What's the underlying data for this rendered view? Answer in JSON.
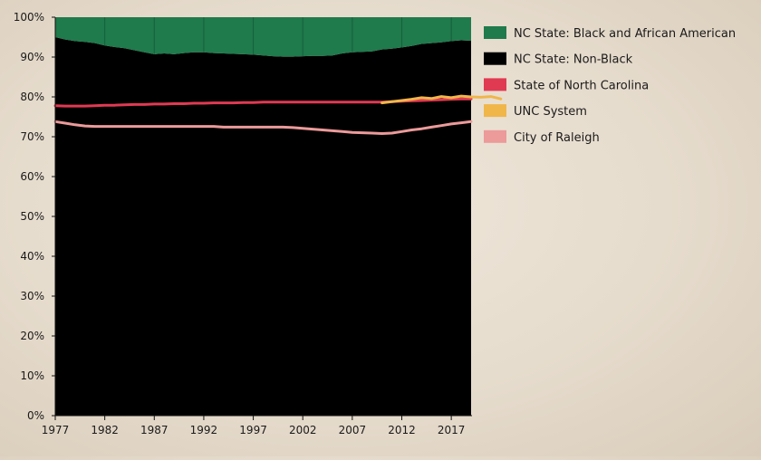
{
  "chart_data": {
    "type": "area",
    "years": [
      1977,
      1978,
      1979,
      1980,
      1981,
      1982,
      1983,
      1984,
      1985,
      1986,
      1987,
      1988,
      1989,
      1990,
      1991,
      1992,
      1993,
      1994,
      1995,
      1996,
      1997,
      1998,
      1999,
      2000,
      2001,
      2002,
      2003,
      2004,
      2005,
      2006,
      2007,
      2008,
      2009,
      2010,
      2011,
      2012,
      2013,
      2014,
      2015,
      2016,
      2017,
      2018,
      2019
    ],
    "x_ticks": [
      "1977",
      "1982",
      "1987",
      "1992",
      "1997",
      "2002",
      "2007",
      "2012",
      "2017"
    ],
    "y_ticks": [
      "0%",
      "10%",
      "20%",
      "30%",
      "40%",
      "50%",
      "60%",
      "70%",
      "80%",
      "90%",
      "100%"
    ],
    "ylim": [
      0,
      100
    ],
    "series": [
      {
        "name": "NC State: Black and African American",
        "color": "#1f7a4c",
        "kind": "area-top",
        "values": [
          5.0,
          5.6,
          6.0,
          6.2,
          6.5,
          7.1,
          7.5,
          7.8,
          8.3,
          8.8,
          9.3,
          9.1,
          9.3,
          9.0,
          8.8,
          8.8,
          9.0,
          9.1,
          9.2,
          9.3,
          9.4,
          9.6,
          9.8,
          9.9,
          9.9,
          9.8,
          9.7,
          9.7,
          9.6,
          9.1,
          8.8,
          8.7,
          8.6,
          8.1,
          7.9,
          7.6,
          7.2,
          6.7,
          6.5,
          6.3,
          6.0,
          5.8,
          5.9
        ]
      },
      {
        "name": "NC State: Non-Black",
        "color": "#000000",
        "kind": "area-bottom",
        "values": [
          95.0,
          94.4,
          94.0,
          93.8,
          93.5,
          92.9,
          92.5,
          92.2,
          91.7,
          91.2,
          90.7,
          90.9,
          90.7,
          91.0,
          91.2,
          91.2,
          91.0,
          90.9,
          90.8,
          90.7,
          90.6,
          90.4,
          90.2,
          90.1,
          90.1,
          90.2,
          90.3,
          90.3,
          90.4,
          90.9,
          91.2,
          91.3,
          91.4,
          91.9,
          92.1,
          92.4,
          92.8,
          93.3,
          93.5,
          93.7,
          94.0,
          94.2,
          94.1
        ]
      },
      {
        "name": "State of North Carolina",
        "color": "#e03a52",
        "kind": "line",
        "values": [
          77.8,
          77.7,
          77.7,
          77.7,
          77.8,
          77.9,
          77.9,
          78.0,
          78.1,
          78.1,
          78.2,
          78.2,
          78.3,
          78.3,
          78.4,
          78.4,
          78.5,
          78.5,
          78.5,
          78.6,
          78.6,
          78.7,
          78.7,
          78.7,
          78.7,
          78.7,
          78.7,
          78.7,
          78.7,
          78.7,
          78.7,
          78.7,
          78.7,
          78.7,
          78.8,
          78.9,
          79.0,
          79.1,
          79.2,
          79.3,
          79.4,
          79.5,
          79.5
        ]
      },
      {
        "name": "UNC System",
        "color": "#f0b64a",
        "kind": "line",
        "start_year": 2010,
        "values": [
          78.5,
          78.8,
          79.1,
          79.4,
          79.8,
          79.6,
          80.1,
          79.8,
          80.2,
          80.0,
          79.9,
          80.1,
          79.5
        ]
      },
      {
        "name": "City of Raleigh",
        "color": "#ec9a9a",
        "kind": "line",
        "values": [
          73.8,
          73.4,
          73.0,
          72.7,
          72.6,
          72.6,
          72.6,
          72.6,
          72.6,
          72.6,
          72.6,
          72.6,
          72.6,
          72.6,
          72.6,
          72.6,
          72.6,
          72.4,
          72.4,
          72.4,
          72.4,
          72.4,
          72.4,
          72.4,
          72.3,
          72.1,
          71.9,
          71.7,
          71.5,
          71.3,
          71.1,
          71.0,
          70.9,
          70.8,
          70.9,
          71.3,
          71.7,
          72.0,
          72.4,
          72.8,
          73.2,
          73.5,
          73.8
        ]
      }
    ]
  }
}
